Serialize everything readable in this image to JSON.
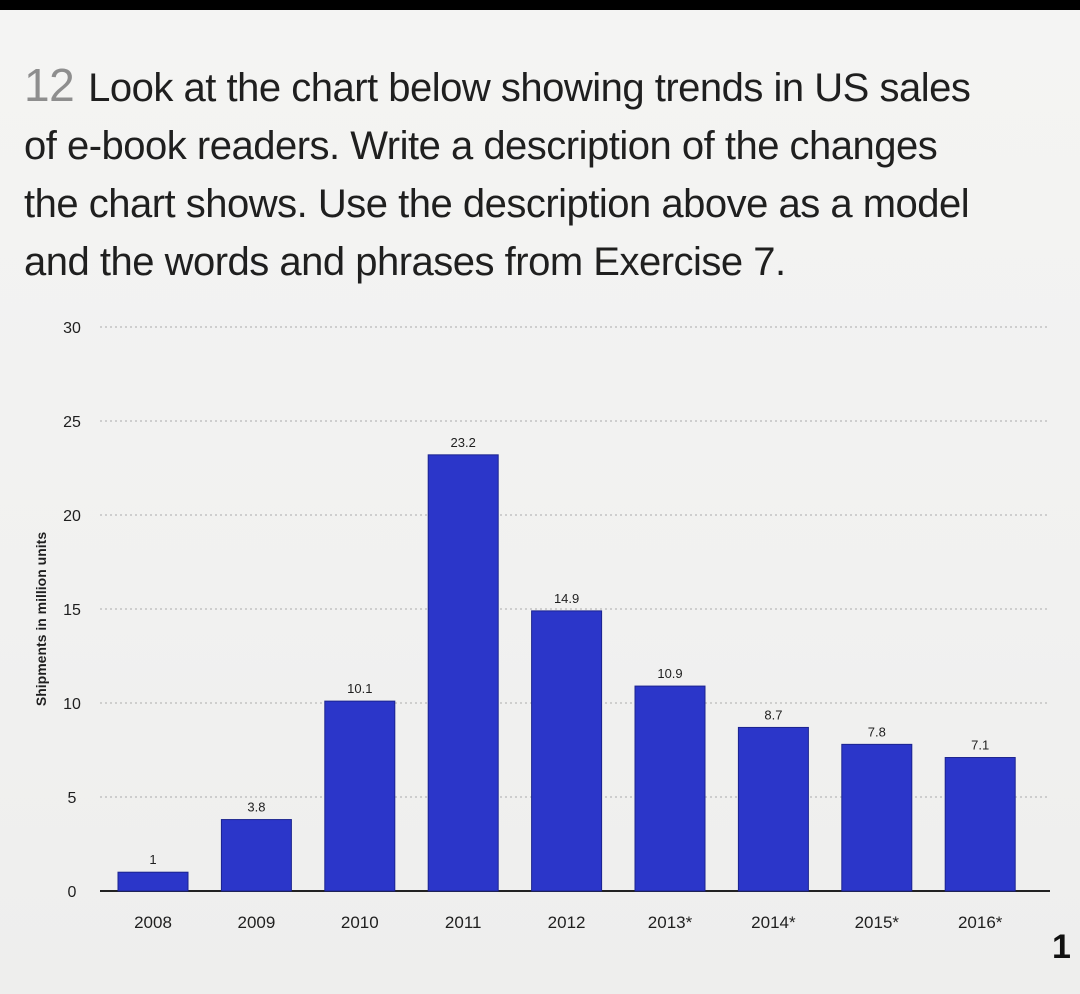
{
  "exercise": {
    "number": "12",
    "lines": [
      "Look at the chart below showing trends in US sales",
      "of e-book readers. Write a description of the changes",
      "the chart shows. Use the description above as a model",
      "and the words and phrases from Exercise 7."
    ]
  },
  "page_number": "1",
  "colors": {
    "bar": "#2b36c9",
    "text": "#1f1f1f",
    "grid": "#b9b9b9"
  },
  "chart_data": {
    "type": "bar",
    "categories": [
      "2008",
      "2009",
      "2010",
      "2011",
      "2012",
      "2013*",
      "2014*",
      "2015*",
      "2016*"
    ],
    "values": [
      1,
      3.8,
      10.1,
      23.2,
      14.9,
      10.9,
      8.7,
      7.8,
      7.1
    ],
    "value_labels": [
      "1",
      "3.8",
      "10.1",
      "23.2",
      "14.9",
      "10.9",
      "8.7",
      "7.8",
      "7.1"
    ],
    "ylabel": "Shipments in million units",
    "xlabel": "",
    "title": "",
    "ylim": [
      0,
      30
    ],
    "yticks": [
      0,
      5,
      10,
      15,
      20,
      25,
      30
    ],
    "grid": true,
    "grid_style": "dotted"
  }
}
